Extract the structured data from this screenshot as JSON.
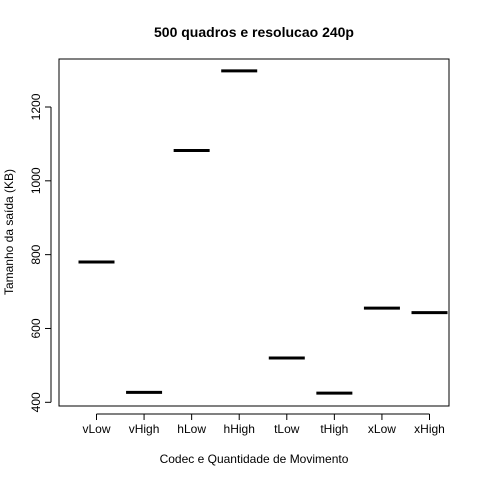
{
  "chart_data": {
    "type": "boxplot",
    "title": "500 quadros e resolucao 240p",
    "xlabel": "Codec e Quantidade de Movimento",
    "ylabel": "Tamanho da saída (KB)",
    "categories": [
      "vLow",
      "vHigh",
      "hLow",
      "hHigh",
      "tLow",
      "tHigh",
      "xLow",
      "xHigh"
    ],
    "values": [
      780,
      427,
      1082,
      1298,
      520,
      425,
      655,
      643
    ],
    "ylim": [
      390,
      1330
    ],
    "yticks": [
      400,
      600,
      800,
      1000,
      1200
    ],
    "grid": false,
    "legend": "none",
    "line_color": "#000000"
  }
}
